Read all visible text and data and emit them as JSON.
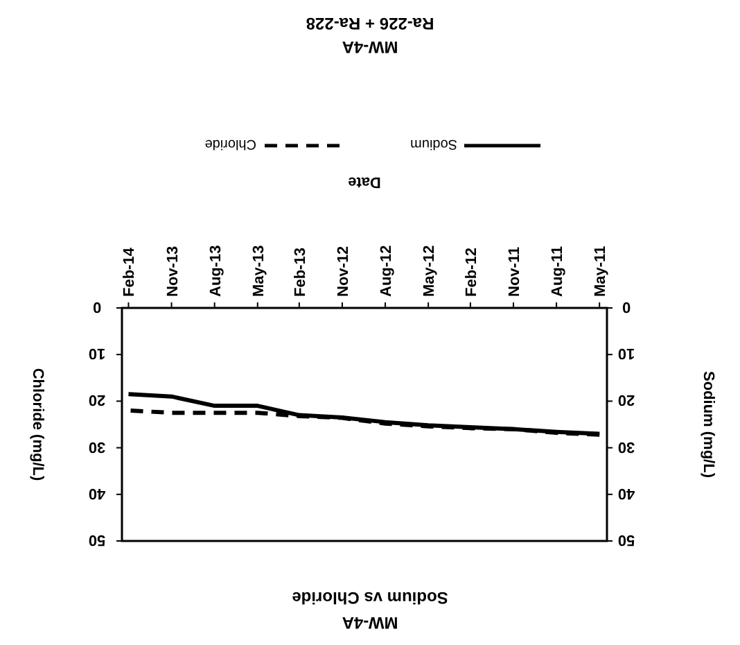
{
  "chart_data": {
    "type": "line",
    "title": "MW-4A",
    "subtitle": "Sodium vs Chloride",
    "xlabel": "Date",
    "ylabel": "Chloride (mg/L)",
    "y2label": "Sodium (mg/L)",
    "annotations": [
      "MW-4A",
      "Ra-226 + Ra-228"
    ],
    "x": [
      "2011-05",
      "2011-08",
      "2011-11",
      "2012-02",
      "2012-05",
      "2012-08",
      "2012-11",
      "2013-02",
      "2013-05",
      "2013-08",
      "2013-11",
      "2014-02"
    ],
    "xlim": [
      "2014-02-15",
      "2011-04-15"
    ],
    "xticks": [
      {
        "value": "2011-05",
        "label": "May-11"
      },
      {
        "value": "2011-08",
        "label": "Aug-11"
      },
      {
        "value": "2011-11",
        "label": "Nov-11"
      },
      {
        "value": "2012-02",
        "label": "Feb-12"
      },
      {
        "value": "2012-05",
        "label": "May-12"
      },
      {
        "value": "2012-08",
        "label": "Aug-12"
      },
      {
        "value": "2012-11",
        "label": "Nov-12"
      },
      {
        "value": "2013-02",
        "label": "Feb-13"
      },
      {
        "value": "2013-05",
        "label": "May-13"
      },
      {
        "value": "2013-08",
        "label": "Aug-13"
      },
      {
        "value": "2013-11",
        "label": "Nov-13"
      },
      {
        "value": "2014-02",
        "label": "Feb-14"
      }
    ],
    "ylim": [
      50,
      0
    ],
    "yticks": [
      0,
      10,
      20,
      30,
      40,
      50
    ],
    "y2lim": [
      50,
      0
    ],
    "y2ticks": [
      0,
      10,
      20,
      30,
      40,
      50
    ],
    "legend": "top",
    "series": [
      {
        "name": "Sodium",
        "color": "#000000",
        "line_style": "solid",
        "values": [
          27,
          26.6,
          26,
          25.6,
          25.2,
          24.5,
          23.5,
          23,
          21,
          21,
          19,
          18.5
        ]
      },
      {
        "name": "Chloride",
        "color": "#000000",
        "line_style": "dashed",
        "values": [
          27.2,
          26.8,
          26,
          25.8,
          25.4,
          24.8,
          23.6,
          23.2,
          22.5,
          22.5,
          22.5,
          22
        ]
      }
    ]
  }
}
